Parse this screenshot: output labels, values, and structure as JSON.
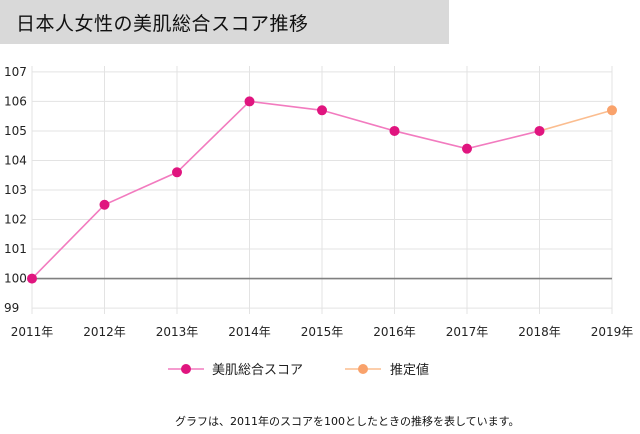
{
  "title": "日本人女性の美肌総合スコア推移",
  "footnote": "グラフは、2011年のスコアを100としたときの推移を表しています。",
  "colors": {
    "actual_line": "#f27bbf",
    "actual_marker": "#e0157f",
    "estimate_line": "#fbbd8f",
    "estimate_marker": "#f9a26b",
    "baseline": "#808080",
    "grid": "#e3e3e3",
    "title_background": "#d9d9d9"
  },
  "chart_data": {
    "type": "line",
    "title": "日本人女性の美肌総合スコア推移",
    "categories": [
      "2011年",
      "2012年",
      "2013年",
      "2014年",
      "2015年",
      "2016年",
      "2017年",
      "2018年",
      "2019年"
    ],
    "series": [
      {
        "name": "美肌総合スコア",
        "values": [
          100,
          102.5,
          103.6,
          106.0,
          105.7,
          105.0,
          104.4,
          105.0,
          null
        ]
      },
      {
        "name": "推定値",
        "values": [
          null,
          null,
          null,
          null,
          null,
          null,
          null,
          105.0,
          105.7
        ]
      }
    ],
    "yticks": [
      "99",
      "100",
      "101",
      "102",
      "103",
      "104",
      "105",
      "106",
      "107"
    ],
    "ylim": [
      98.8,
      107.2
    ],
    "baseline": 100,
    "grid": true,
    "legend_position": "bottom"
  }
}
